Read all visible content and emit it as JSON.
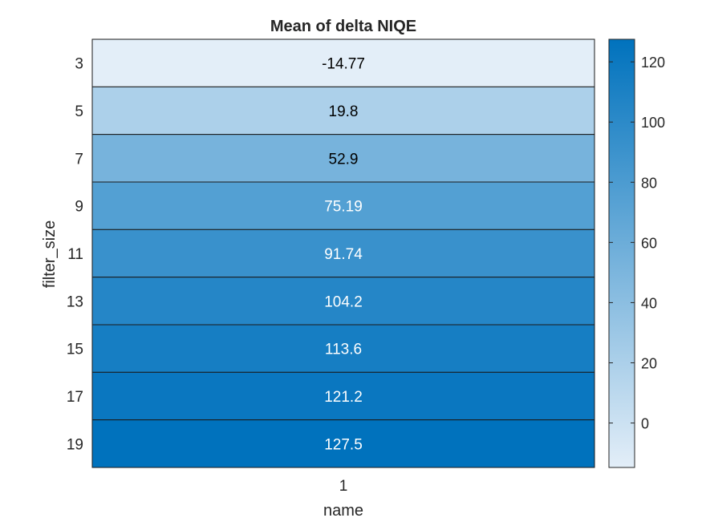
{
  "chart_data": {
    "type": "heatmap",
    "title": "Mean of delta NIQE",
    "xlabel": "name",
    "ylabel": "filter_size",
    "x_categories": [
      "1"
    ],
    "y_categories": [
      "3",
      "5",
      "7",
      "9",
      "11",
      "13",
      "15",
      "17",
      "19"
    ],
    "values": [
      [
        -14.77
      ],
      [
        19.8
      ],
      [
        52.9
      ],
      [
        75.19
      ],
      [
        91.74
      ],
      [
        104.2
      ],
      [
        113.6
      ],
      [
        121.2
      ],
      [
        127.5
      ]
    ],
    "cell_labels": [
      "-14.77",
      "19.8",
      "52.9",
      "75.19",
      "91.74",
      "104.2",
      "113.6",
      "121.2",
      "127.5"
    ],
    "colorbar": {
      "range": [
        -14.77,
        127.5
      ],
      "ticks": [
        0,
        20,
        40,
        60,
        80,
        100,
        120
      ],
      "tick_labels": [
        "0",
        "20",
        "40",
        "60",
        "80",
        "100",
        "120"
      ],
      "color_low": "#e3eef8",
      "color_high": "#0072bd"
    },
    "label_color_dark": "#000000",
    "label_color_light": "#ffffff",
    "grid": true,
    "legend": "colorbar right"
  }
}
